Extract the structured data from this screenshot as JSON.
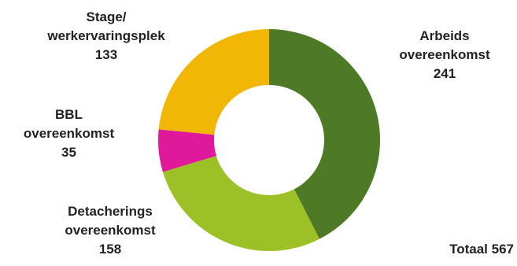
{
  "chart_data": {
    "type": "pie",
    "style": "donut",
    "categories": [
      [
        "Arbeids",
        "overeenkomst"
      ],
      [
        "Detacherings",
        "overeenkomst"
      ],
      [
        "BBL",
        "overeenkomst"
      ],
      [
        "Stage/",
        "werkervaringsplek"
      ]
    ],
    "values": [
      241,
      158,
      35,
      133
    ],
    "colors": [
      "#4e7a26",
      "#9cc126",
      "#e0199b",
      "#f2b705"
    ],
    "total_label": "Totaal 567"
  }
}
